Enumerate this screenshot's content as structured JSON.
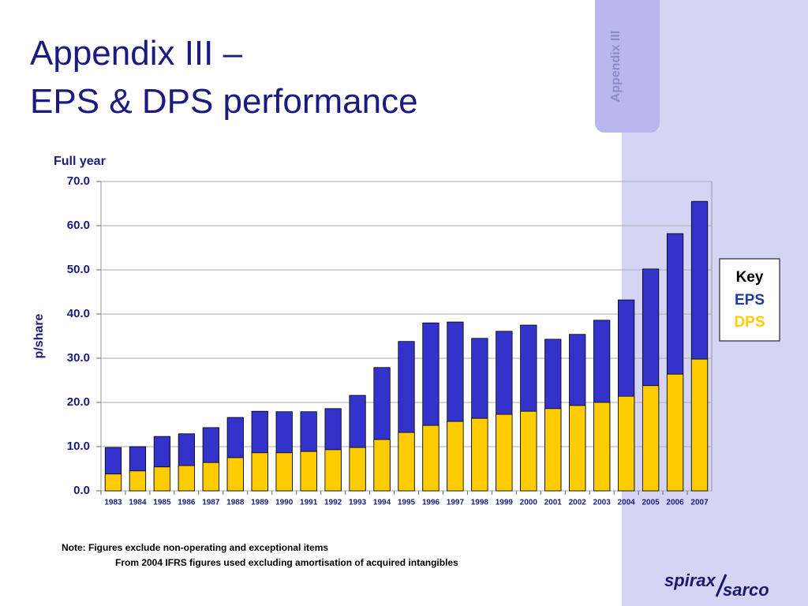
{
  "slide": {
    "title_lines": [
      "Appendix III –",
      "EPS & DPS performance"
    ],
    "tab": "Appendix III",
    "notes": [
      "Note: Figures exclude non-operating and exceptional items",
      "From 2004 IFRS figures used excluding amortisation of acquired intangibles"
    ],
    "logo": [
      "spirax",
      "sarco"
    ]
  },
  "chart_data": {
    "type": "bar",
    "subtitle": "Full year",
    "y_label": "p/share",
    "legend_title": "Key",
    "overlap": true,
    "grid": true,
    "categories": [
      "1983",
      "1984",
      "1985",
      "1986",
      "1987",
      "1988",
      "1989",
      "1990",
      "1991",
      "1992",
      "1993",
      "1994",
      "1995",
      "1996",
      "1997",
      "1998",
      "1999",
      "2000",
      "2001",
      "2002",
      "2003",
      "2004",
      "2005",
      "2006",
      "2007"
    ],
    "series": [
      {
        "name": "EPS",
        "color": "#3333cc",
        "legend_color": "#1f3aa0",
        "values": [
          9.8,
          10.0,
          12.3,
          12.9,
          14.3,
          16.6,
          18.0,
          17.9,
          17.9,
          18.6,
          21.6,
          27.9,
          33.8,
          38.0,
          38.2,
          34.5,
          36.1,
          37.5,
          34.3,
          35.4,
          38.6,
          43.2,
          50.2,
          58.2,
          65.5
        ]
      },
      {
        "name": "DPS",
        "color": "#ffcc00",
        "legend_color": "#ffcc00",
        "values": [
          3.8,
          4.5,
          5.4,
          5.7,
          6.4,
          7.5,
          8.6,
          8.6,
          8.9,
          9.3,
          9.8,
          11.6,
          13.2,
          14.8,
          15.7,
          16.4,
          17.3,
          18.0,
          18.6,
          19.3,
          20.0,
          21.4,
          23.8,
          26.4,
          29.8
        ]
      }
    ],
    "ylim": [
      0,
      70
    ],
    "yticks": [
      {
        "value": 0,
        "label": "0.0"
      },
      {
        "value": 10,
        "label": "10.0"
      },
      {
        "value": 20,
        "label": "20.0"
      },
      {
        "value": 30,
        "label": "30.0"
      },
      {
        "value": 40,
        "label": "40.0"
      },
      {
        "value": 50,
        "label": "50.0"
      },
      {
        "value": 60,
        "label": "60.0"
      },
      {
        "value": 70,
        "label": "70.0"
      }
    ]
  }
}
